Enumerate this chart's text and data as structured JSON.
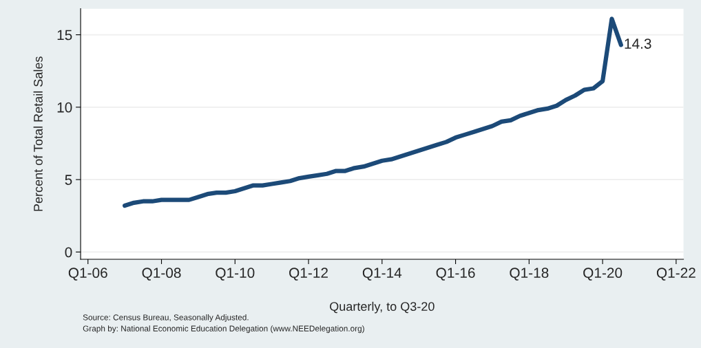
{
  "chart_data": {
    "type": "line",
    "xlabel": "Quarterly, to Q3-20",
    "ylabel": "Percent of Total Retail Sales",
    "categories": [
      "Q1-06",
      null,
      null,
      null,
      null,
      null,
      null,
      null,
      "Q1-08",
      null,
      null,
      null,
      null,
      null,
      null,
      null,
      "Q1-10",
      null,
      null,
      null,
      null,
      null,
      null,
      null,
      "Q1-12",
      null,
      null,
      null,
      null,
      null,
      null,
      null,
      "Q1-14",
      null,
      null,
      null,
      null,
      null,
      null,
      null,
      "Q1-16",
      null,
      null,
      null,
      null,
      null,
      null,
      null,
      "Q1-18",
      null,
      null,
      null,
      null,
      null,
      null,
      null,
      "Q1-20",
      null,
      null,
      null,
      null,
      null,
      null,
      null,
      "Q1-22"
    ],
    "series": [
      {
        "color": "#1c4a78",
        "values": [
          null,
          null,
          null,
          null,
          3.2,
          3.4,
          3.5,
          3.5,
          3.6,
          3.6,
          3.6,
          3.6,
          3.8,
          4.0,
          4.1,
          4.1,
          4.2,
          4.4,
          4.6,
          4.6,
          4.7,
          4.8,
          4.9,
          5.1,
          5.2,
          5.3,
          5.4,
          5.6,
          5.6,
          5.8,
          5.9,
          6.1,
          6.3,
          6.4,
          6.6,
          6.8,
          7.0,
          7.2,
          7.4,
          7.6,
          7.9,
          8.1,
          8.3,
          8.5,
          8.7,
          9.0,
          9.1,
          9.4,
          9.6,
          9.8,
          9.9,
          10.1,
          10.5,
          10.8,
          11.2,
          11.3,
          11.8,
          16.1,
          14.3,
          null,
          null,
          null,
          null,
          null,
          null
        ],
        "value_labels": [
          null,
          null,
          null,
          null,
          null,
          null,
          null,
          null,
          null,
          null,
          null,
          null,
          null,
          null,
          null,
          null,
          null,
          null,
          null,
          null,
          null,
          null,
          null,
          null,
          null,
          null,
          null,
          null,
          null,
          null,
          null,
          null,
          null,
          null,
          null,
          null,
          null,
          null,
          null,
          null,
          null,
          null,
          null,
          null,
          null,
          null,
          null,
          null,
          null,
          null,
          null,
          null,
          null,
          null,
          null,
          null,
          null,
          null,
          "14.3",
          null,
          null,
          null,
          null,
          null,
          null
        ]
      }
    ],
    "ylim": [
      -0.5,
      16.8
    ],
    "yticks": [
      0,
      5,
      10,
      15
    ],
    "grid": "y",
    "marker": "none",
    "line_style": "solid",
    "legend": false,
    "annotations": [
      "Source: Census Bureau, Seasonally Adjusted.",
      "Graph by: National Economic Education Delegation (www.NEEDelegation.org)"
    ]
  }
}
